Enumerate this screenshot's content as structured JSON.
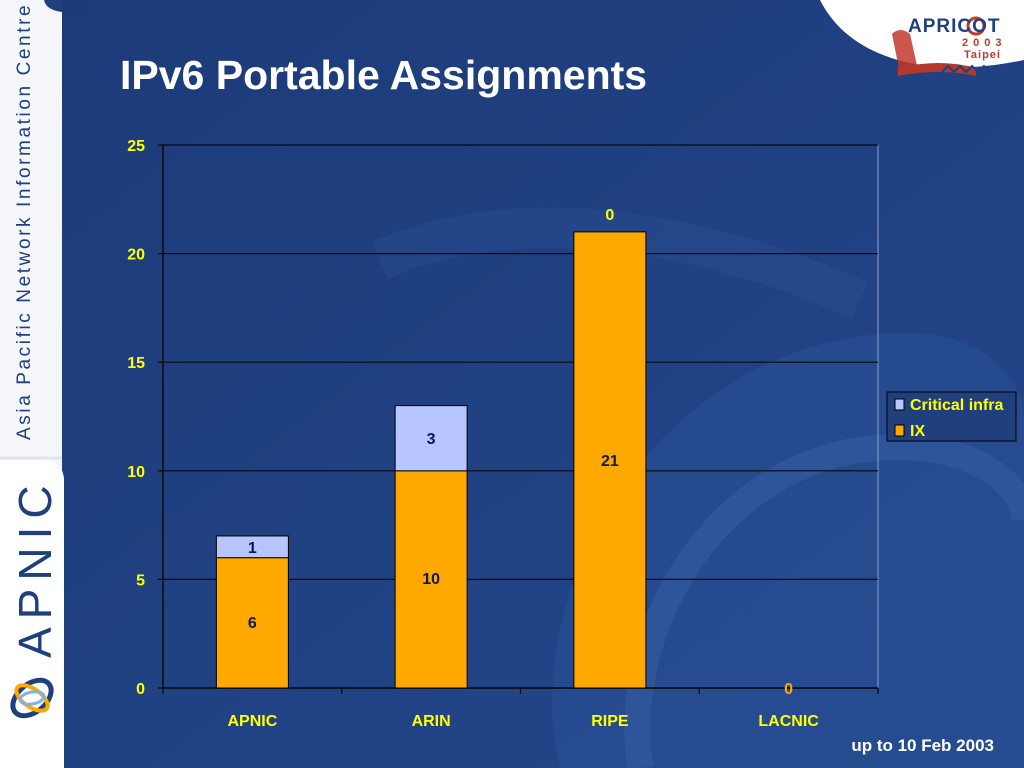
{
  "slide": {
    "sidebar_text": "Asia Pacific Network Information Centre",
    "sidebar_logo": "APNIC",
    "title": "IPv6 Portable Assignments",
    "footer": "up to 10 Feb 2003",
    "event_logo": {
      "name": "APRICOT",
      "year": "2003",
      "city": "Taipei"
    }
  },
  "colors": {
    "background": "#1f3f7d",
    "ix": "#ffa800",
    "critical_infra": "#b8c6ff",
    "label": "#ffff00"
  },
  "chart_data": {
    "type": "bar",
    "stacked": true,
    "title": "",
    "categories": [
      "APNIC",
      "ARIN",
      "RIPE",
      "LACNIC"
    ],
    "series": [
      {
        "name": "IX",
        "values": [
          6,
          10,
          21,
          0
        ]
      },
      {
        "name": "Critical infra",
        "values": [
          1,
          3,
          0,
          0
        ]
      }
    ],
    "ylim": [
      0,
      25
    ],
    "yticks": [
      "0",
      "5",
      "10",
      "15",
      "20",
      "25"
    ],
    "grid": true,
    "legend": "right"
  }
}
